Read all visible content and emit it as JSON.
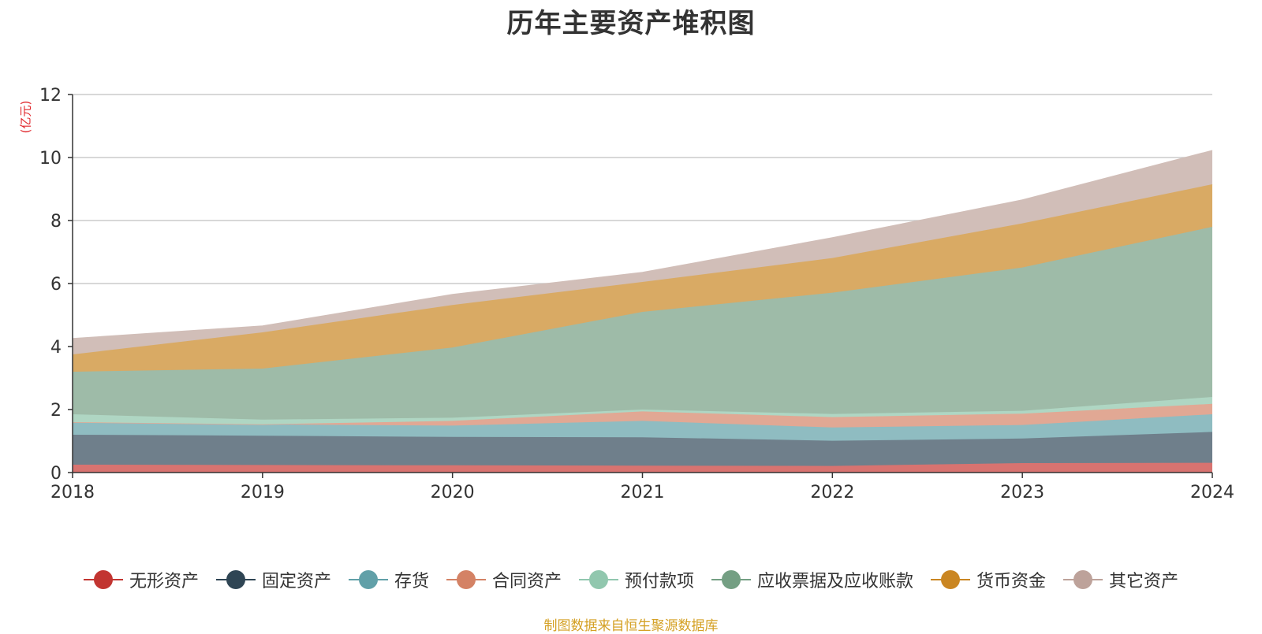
{
  "chart_data": {
    "type": "area",
    "stacked": true,
    "title": "历年主要资产堆积图",
    "unit_label": "(亿元)",
    "x": [
      "2018",
      "2019",
      "2020",
      "2021",
      "2022",
      "2023",
      "2024"
    ],
    "ylim": [
      0,
      12
    ],
    "yticks": [
      0,
      2,
      4,
      6,
      8,
      10,
      12
    ],
    "grid": true,
    "legend_position": "bottom",
    "series": [
      {
        "name": "无形资产",
        "color": "#c23531",
        "fill": "#d87370",
        "values": [
          0.25,
          0.24,
          0.23,
          0.22,
          0.21,
          0.3,
          0.31
        ]
      },
      {
        "name": "固定资产",
        "color": "#2f4554",
        "fill": "#6f7f8b",
        "values": [
          0.95,
          0.93,
          0.9,
          0.9,
          0.8,
          0.78,
          0.98
        ]
      },
      {
        "name": "存货",
        "color": "#61a0a8",
        "fill": "#8fbcc1",
        "values": [
          0.4,
          0.36,
          0.36,
          0.52,
          0.42,
          0.43,
          0.56
        ]
      },
      {
        "name": "合同资产",
        "color": "#d48265",
        "fill": "#e1a894",
        "values": [
          0.0,
          0.0,
          0.15,
          0.3,
          0.33,
          0.36,
          0.33
        ]
      },
      {
        "name": "预付款项",
        "color": "#91c7ae",
        "fill": "#afd6c3",
        "values": [
          0.25,
          0.15,
          0.1,
          0.06,
          0.1,
          0.09,
          0.22
        ]
      },
      {
        "name": "应收票据及应收账款",
        "color": "#749f83",
        "fill": "#9ebba8",
        "values": [
          1.35,
          1.62,
          2.23,
          3.1,
          3.85,
          4.55,
          5.4
        ]
      },
      {
        "name": "货币资金",
        "color": "#ca8622",
        "fill": "#d9aa64",
        "values": [
          0.55,
          1.15,
          1.35,
          0.95,
          1.1,
          1.4,
          1.35
        ]
      },
      {
        "name": "其它资产",
        "color": "#bda29a",
        "fill": "#d1beb8",
        "values": [
          0.5,
          0.2,
          0.33,
          0.3,
          0.64,
          0.74,
          1.07
        ]
      }
    ]
  },
  "source_note": "制图数据来自恒生聚源数据库"
}
